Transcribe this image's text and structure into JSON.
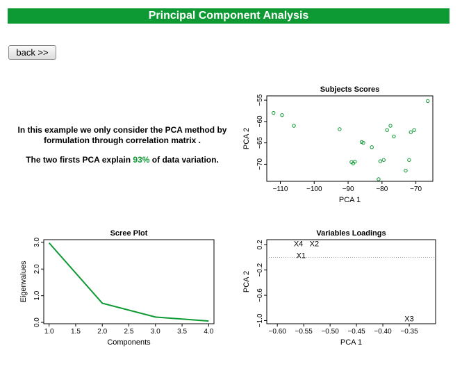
{
  "header": {
    "title": "Principal Component Analysis"
  },
  "nav": {
    "back_label": "back >>"
  },
  "description": {
    "line1": "In this example we only consider the PCA method by formulation through correlation matrix .",
    "line2_prefix": "The two firsts PCA explain ",
    "line2_pct": "93%",
    "line2_suffix": " of data variation."
  },
  "colors": {
    "accent": "#0d9933",
    "point": "#0d9933"
  },
  "chart_data": [
    {
      "id": "subjects_scores",
      "type": "scatter",
      "title": "Subjects Scores",
      "xlabel": "PCA 1",
      "ylabel": "PCA 2",
      "xlim": [
        -114,
        -65
      ],
      "ylim": [
        -74,
        -54
      ],
      "xticks": [
        -110,
        -100,
        -90,
        -80,
        -70
      ],
      "yticks": [
        -55,
        -60,
        -65,
        -70
      ],
      "x": [
        -112,
        -109.5,
        -106,
        -92.5,
        -89,
        -88.5,
        -88,
        -86,
        -85.5,
        -83,
        -81,
        -80.5,
        -79.5,
        -78.5,
        -77.5,
        -76.5,
        -73,
        -72,
        -71.5,
        -70.5,
        -66.5
      ],
      "y": [
        -58,
        -58.5,
        -61,
        -61.8,
        -69.5,
        -69.8,
        -69.4,
        -64.8,
        -65,
        -66,
        -73.5,
        -69.3,
        -69,
        -62,
        -61,
        -63.5,
        -71.5,
        -69,
        -62.5,
        -62,
        -55.2
      ]
    },
    {
      "id": "scree_plot",
      "type": "line",
      "title": "Scree Plot",
      "xlabel": "Components",
      "ylabel": "Eigenvalues",
      "xlim": [
        0.9,
        4.1
      ],
      "ylim": [
        -0.05,
        3.1
      ],
      "xticks": [
        "1.0",
        "1.5",
        "2.0",
        "2.5",
        "3.0",
        "3.5",
        "4.0"
      ],
      "yticks": [
        "0.0",
        "1.0",
        "2.0",
        "3.0"
      ],
      "x": [
        1,
        2,
        3,
        4
      ],
      "y": [
        2.98,
        0.72,
        0.2,
        0.05
      ]
    },
    {
      "id": "variables_loadings",
      "type": "scatter",
      "title": "Variables Loadings",
      "xlabel": "PCA 1",
      "ylabel": "PCA 2",
      "xlim": [
        -0.62,
        -0.3
      ],
      "ylim": [
        -1.05,
        0.28
      ],
      "xticks": [
        "-0.60",
        "-0.55",
        "-0.50",
        "-0.45",
        "-0.40",
        "-0.35"
      ],
      "yticks": [
        "0.2",
        "-0.2",
        "-0.6",
        "-1.0"
      ],
      "labels": [
        "X4",
        "X2",
        "X1",
        "X3"
      ],
      "x": [
        -0.56,
        -0.53,
        -0.555,
        -0.35
      ],
      "y": [
        0.22,
        0.22,
        0.03,
        -0.97
      ],
      "hline": 0
    }
  ]
}
